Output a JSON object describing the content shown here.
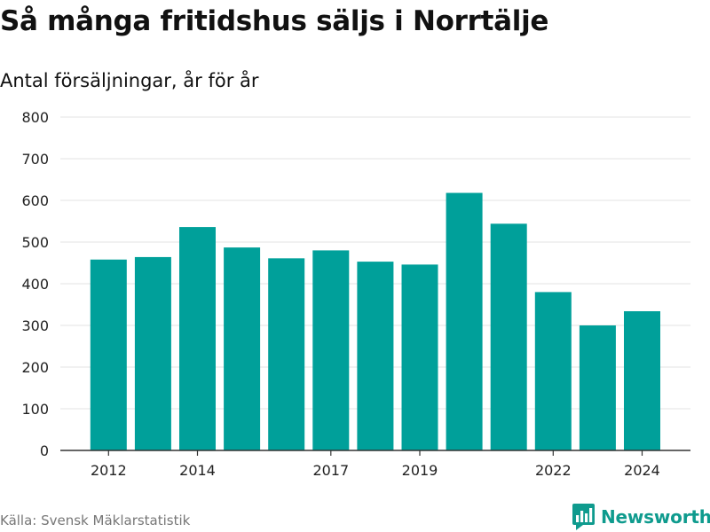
{
  "header": {
    "title": "Så många fritidshus säljs i Norrtälje",
    "subtitle": "Antal försäljningar, år för år"
  },
  "footer": {
    "source": "Källa: Svensk Mäklarstatistik",
    "brand": "Newsworthy"
  },
  "colors": {
    "bar": "#00a09a",
    "brand": "#0f9b8e",
    "grid": "#e3e3e3",
    "axis": "#333333"
  },
  "chart_data": {
    "type": "bar",
    "title": "Så många fritidshus säljs i Norrtälje",
    "subtitle": "Antal försäljningar, år för år",
    "categories": [
      2012,
      2013,
      2014,
      2015,
      2016,
      2017,
      2018,
      2019,
      2020,
      2021,
      2022,
      2023,
      2024
    ],
    "values": [
      458,
      464,
      536,
      487,
      461,
      480,
      453,
      446,
      618,
      544,
      380,
      300,
      334
    ],
    "x_tick_labels": [
      "2012",
      "2014",
      "2017",
      "2019",
      "2022",
      "2024"
    ],
    "y_ticks": [
      0,
      100,
      200,
      300,
      400,
      500,
      600,
      700,
      800
    ],
    "ylim": [
      0,
      800
    ],
    "xlabel": "",
    "ylabel": "",
    "grid": true,
    "legend": false
  }
}
